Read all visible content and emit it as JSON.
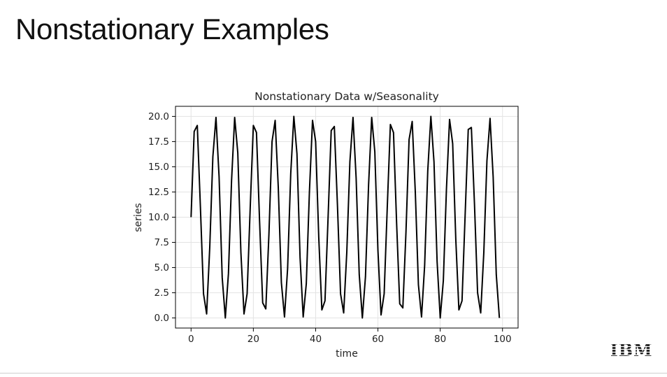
{
  "slide": {
    "title": "Nonstationary Examples",
    "logo_text": "IBM"
  },
  "chart_data": {
    "type": "line",
    "title": "Nonstationary Data w/Seasonality",
    "xlabel": "time",
    "ylabel": "series",
    "xlim": [
      -5,
      105
    ],
    "ylim": [
      -1,
      21
    ],
    "xticks": [
      0,
      20,
      40,
      60,
      80,
      100
    ],
    "yticks": [
      0.0,
      2.5,
      5.0,
      7.5,
      10.0,
      12.5,
      15.0,
      17.5,
      20.0
    ],
    "grid": true,
    "line_color": "#000000",
    "series": [
      {
        "x": [
          0,
          1,
          2,
          3,
          4,
          5,
          6,
          7,
          8,
          9,
          10,
          11,
          12,
          13,
          14,
          15,
          16,
          17,
          18,
          19,
          20,
          21,
          22,
          23,
          24,
          25,
          26,
          27,
          28,
          29,
          30,
          31,
          32,
          33,
          34,
          35,
          36,
          37,
          38,
          39,
          40,
          41,
          42,
          43,
          44,
          45,
          46,
          47,
          48,
          49,
          50,
          51,
          52,
          53,
          54,
          55,
          56,
          57,
          58,
          59,
          60,
          61,
          62,
          63,
          64,
          65,
          66,
          67,
          68,
          69,
          70,
          71,
          72,
          73,
          74,
          75,
          76,
          77,
          78,
          79,
          80,
          81,
          82,
          83,
          84,
          85,
          86,
          87,
          88,
          89,
          90,
          91,
          92,
          93,
          94,
          95,
          96,
          97,
          98,
          99
        ],
        "y": [
          10.0,
          18.5,
          19.1,
          11.0,
          2.4,
          0.4,
          7.0,
          16.0,
          19.9,
          14.0,
          4.0,
          0.0,
          4.4,
          13.6,
          19.9,
          16.4,
          6.5,
          0.4,
          2.4,
          11.0,
          19.1,
          18.4,
          9.6,
          1.5,
          0.9,
          8.3,
          17.5,
          19.6,
          13.0,
          3.5,
          0.1,
          4.9,
          14.3,
          20.0,
          16.3,
          6.0,
          0.1,
          3.4,
          12.5,
          19.6,
          17.5,
          8.0,
          0.8,
          1.7,
          10.0,
          18.6,
          19.0,
          11.2,
          2.4,
          0.5,
          6.5,
          15.5,
          19.9,
          13.9,
          4.3,
          0.0,
          4.1,
          13.2,
          19.9,
          16.5,
          6.7,
          0.3,
          2.4,
          11.0,
          19.2,
          18.4,
          9.4,
          1.4,
          1.0,
          8.5,
          17.7,
          19.5,
          12.5,
          3.3,
          0.1,
          5.2,
          14.6,
          20.0,
          15.5,
          5.6,
          0.0,
          3.7,
          12.8,
          19.7,
          17.3,
          7.8,
          0.8,
          1.7,
          10.2,
          18.7,
          18.9,
          11.3,
          2.5,
          0.5,
          6.5,
          15.6,
          19.8,
          14.0,
          4.3,
          0.0
        ]
      }
    ]
  }
}
